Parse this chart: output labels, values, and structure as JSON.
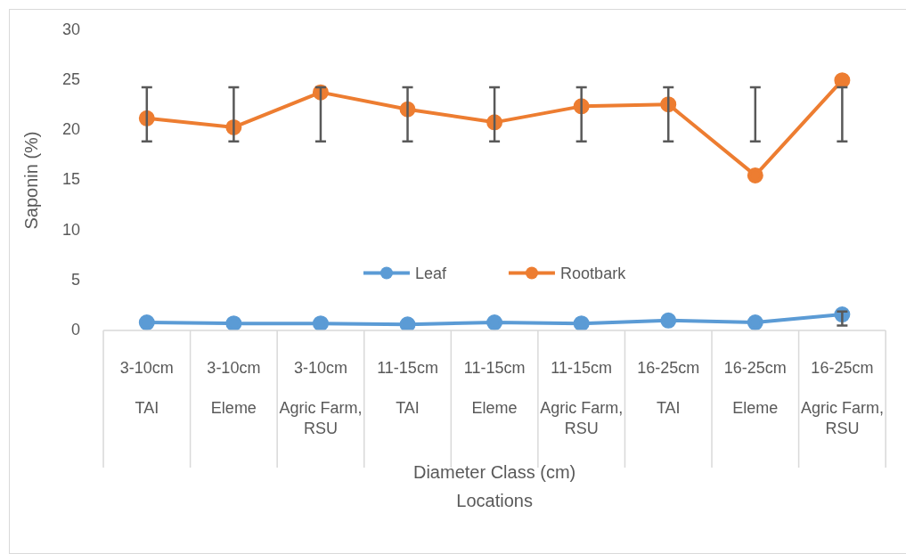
{
  "chart_data": {
    "type": "line",
    "categories": [
      "3-10cm",
      "3-10cm",
      "3-10cm",
      "11-15cm",
      "11-15cm",
      "11-15cm",
      "16-25cm",
      "16-25cm",
      "16-25cm"
    ],
    "series": [
      {
        "name": "Leaf",
        "color": "#5b9bd5",
        "values": [
          0.8,
          0.7,
          0.7,
          0.6,
          0.8,
          0.7,
          1.0,
          0.8,
          1.6
        ],
        "errors": [
          null,
          null,
          null,
          null,
          null,
          null,
          null,
          null,
          [
            0.5,
            1.9
          ]
        ]
      },
      {
        "name": "Rootbark",
        "color": "#ed7d31",
        "values": [
          21.2,
          20.3,
          23.8,
          22.1,
          20.8,
          22.4,
          22.6,
          15.5,
          25.0
        ],
        "errors": [
          [
            18.9,
            24.3
          ],
          [
            18.9,
            24.3
          ],
          [
            18.9,
            24.3
          ],
          [
            18.9,
            24.3
          ],
          [
            18.9,
            24.3
          ],
          [
            18.9,
            24.3
          ],
          [
            18.9,
            24.3
          ],
          [
            18.9,
            24.3
          ],
          [
            18.9,
            24.3
          ]
        ]
      }
    ],
    "ylabel": "Saponin (%)",
    "annotations": [
      "TAI",
      "Eleme",
      "Agric Farm, RSU",
      "TAI",
      "Eleme",
      "Agric Farm, RSU",
      "TAI",
      "Eleme",
      "Agric Farm, RSU",
      "Diameter Class (cm)",
      "Locations"
    ],
    "ylim": [
      0,
      30
    ],
    "yticks": [
      0,
      5,
      10,
      15,
      20,
      25,
      30
    ],
    "legend": "center",
    "marker": "circle",
    "line_style": "solid"
  }
}
